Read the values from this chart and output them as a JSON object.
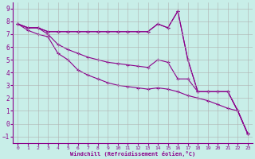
{
  "xlabel": "Windchill (Refroidissement éolien,°C)",
  "background_color": "#c8eee8",
  "grid_color": "#b0b0b0",
  "line_color": "#8b008b",
  "xlim": [
    -0.5,
    23.5
  ],
  "ylim": [
    -1.5,
    9.5
  ],
  "xticks": [
    0,
    1,
    2,
    3,
    4,
    5,
    6,
    7,
    8,
    9,
    10,
    11,
    12,
    13,
    14,
    15,
    16,
    17,
    18,
    19,
    20,
    21,
    22,
    23
  ],
  "yticks": [
    -1,
    0,
    1,
    2,
    3,
    4,
    5,
    6,
    7,
    8,
    9
  ],
  "series": [
    [
      7.8,
      7.5,
      7.5,
      7.2,
      7.2,
      7.2,
      7.2,
      7.2,
      7.2,
      7.2,
      7.2,
      7.2,
      7.2,
      7.2,
      7.8,
      7.5,
      8.8,
      5.0,
      2.5,
      2.5,
      2.5,
      2.5,
      1.0,
      -0.8
    ],
    [
      7.8,
      7.5,
      7.5,
      7.2,
      7.2,
      7.2,
      7.2,
      7.2,
      7.2,
      7.2,
      7.2,
      7.2,
      7.2,
      7.2,
      7.8,
      7.5,
      8.8,
      5.0,
      2.5,
      2.5,
      2.5,
      2.5,
      1.0,
      -0.8
    ],
    [
      7.8,
      7.5,
      7.5,
      7.0,
      6.2,
      5.8,
      5.5,
      5.2,
      5.0,
      4.8,
      4.7,
      4.6,
      4.5,
      4.4,
      5.0,
      4.8,
      3.5,
      3.5,
      2.5,
      2.5,
      2.5,
      2.5,
      1.0,
      -0.8
    ],
    [
      7.8,
      7.3,
      7.0,
      6.8,
      5.5,
      5.0,
      4.2,
      3.8,
      3.5,
      3.2,
      3.0,
      2.9,
      2.8,
      2.7,
      2.8,
      2.7,
      2.5,
      2.2,
      2.0,
      1.8,
      1.5,
      1.2,
      1.0,
      -0.8
    ]
  ]
}
